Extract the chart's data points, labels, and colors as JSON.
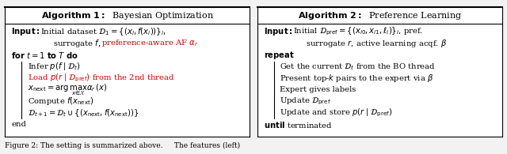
{
  "fig_width": 6.4,
  "fig_height": 1.95,
  "bg_color": "#f0f0f0",
  "alg1_title_bold": "Algorithm 1:",
  "alg1_title_normal": "  Bayesian Optimization",
  "alg2_title_bold": "Algorithm 2:",
  "alg2_title_normal": "  Preference Learning",
  "caption": "Figure 2: The setting is summarized above.     The features (left)",
  "red_color": "#cc0000",
  "fs_title": 8.0,
  "fs_body": 7.2,
  "fs_caption": 6.5
}
